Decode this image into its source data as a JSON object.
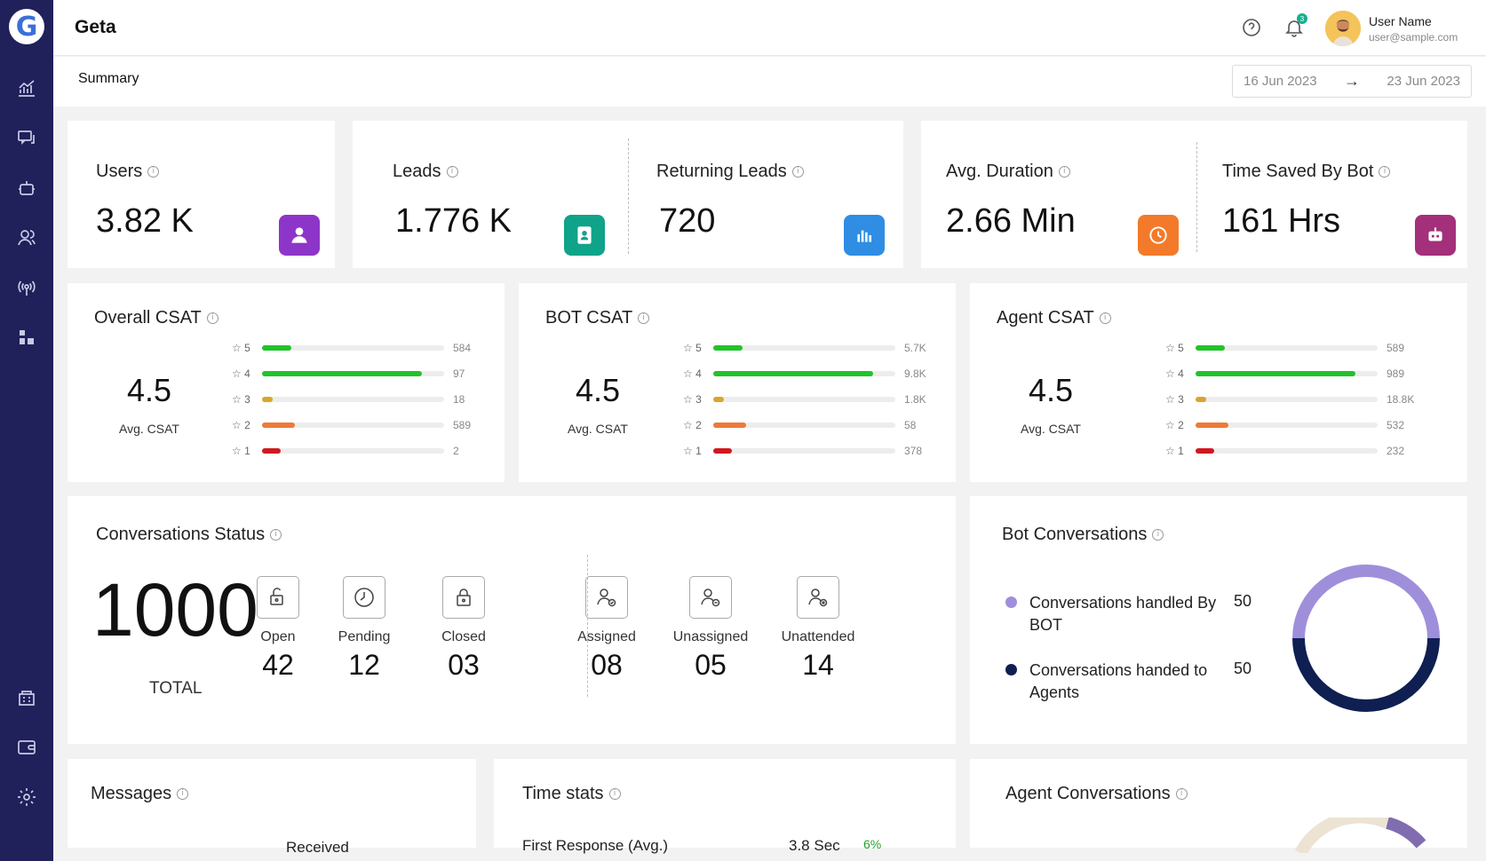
{
  "app": {
    "title": "Geta",
    "logo_letter": "G"
  },
  "sidebar": {
    "items": [
      {
        "name": "analytics-icon"
      },
      {
        "name": "chat-icon"
      },
      {
        "name": "bot-icon"
      },
      {
        "name": "users-icon"
      },
      {
        "name": "broadcast-icon"
      },
      {
        "name": "integrations-icon"
      },
      {
        "name": "store-icon"
      },
      {
        "name": "wallet-icon"
      },
      {
        "name": "settings-icon"
      }
    ]
  },
  "header": {
    "notification_count": "3",
    "user_name": "User Name",
    "user_email": "user@sample.com"
  },
  "summary": {
    "title": "Summary",
    "date_from": "16 Jun 2023",
    "date_to": "23 Jun 2023"
  },
  "stats": {
    "users": {
      "label": "Users",
      "value": "3.82 K",
      "color": "#8e35c9"
    },
    "leads": {
      "label": "Leads",
      "value": "1.776 K",
      "color": "#0fa38a"
    },
    "returning_leads": {
      "label": "Returning Leads",
      "value": "720",
      "color": "#2f8de4"
    },
    "avg_duration": {
      "label": "Avg. Duration",
      "value": "2.66 Min",
      "color": "#f37a2a"
    },
    "time_saved": {
      "label": "Time Saved By Bot",
      "value": "161 Hrs",
      "color": "#a42f7a"
    }
  },
  "csat": {
    "avg_label": "Avg. CSAT",
    "bar_colors": {
      "5": "#22c32a",
      "4": "#22c32a",
      "3": "#d9a62a",
      "2": "#ee7a3a",
      "1": "#d0181f"
    },
    "cards": [
      {
        "title": "Overall CSAT",
        "avg": "4.5",
        "rows": [
          {
            "star": "5",
            "count": "584",
            "fill": 0.16
          },
          {
            "star": "4",
            "count": "97",
            "fill": 0.88
          },
          {
            "star": "3",
            "count": "18",
            "fill": 0.06
          },
          {
            "star": "2",
            "count": "589",
            "fill": 0.18
          },
          {
            "star": "1",
            "count": "2",
            "fill": 0.1
          }
        ]
      },
      {
        "title": "BOT CSAT",
        "avg": "4.5",
        "rows": [
          {
            "star": "5",
            "count": "5.7K",
            "fill": 0.16
          },
          {
            "star": "4",
            "count": "9.8K",
            "fill": 0.88
          },
          {
            "star": "3",
            "count": "1.8K",
            "fill": 0.06
          },
          {
            "star": "2",
            "count": "58",
            "fill": 0.18
          },
          {
            "star": "1",
            "count": "378",
            "fill": 0.1
          }
        ]
      },
      {
        "title": "Agent CSAT",
        "avg": "4.5",
        "rows": [
          {
            "star": "5",
            "count": "589",
            "fill": 0.16
          },
          {
            "star": "4",
            "count": "989",
            "fill": 0.88
          },
          {
            "star": "3",
            "count": "18.8K",
            "fill": 0.06
          },
          {
            "star": "2",
            "count": "532",
            "fill": 0.18
          },
          {
            "star": "1",
            "count": "232",
            "fill": 0.1
          }
        ]
      }
    ]
  },
  "conversations_status": {
    "title": "Conversations Status",
    "total": "1000",
    "total_label": "TOTAL",
    "items": [
      {
        "label": "Open",
        "value": "42",
        "icon": "unlock-icon"
      },
      {
        "label": "Pending",
        "value": "12",
        "icon": "clock-icon"
      },
      {
        "label": "Closed",
        "value": "03",
        "icon": "lock-icon"
      },
      {
        "label": "Assigned",
        "value": "08",
        "icon": "user-check-icon"
      },
      {
        "label": "Unassigned",
        "value": "05",
        "icon": "user-minus-icon"
      },
      {
        "label": "Unattended",
        "value": "14",
        "icon": "user-x-icon"
      }
    ]
  },
  "bot_conversations": {
    "title": "Bot Conversations",
    "legend": [
      {
        "label": "Conversations handled By BOT",
        "value": "50",
        "color": "#9f8fdb"
      },
      {
        "label": "Conversations handed to Agents",
        "value": "50",
        "color": "#0f1f52"
      }
    ]
  },
  "messages": {
    "title": "Messages",
    "partial_text": "Received"
  },
  "time_stats": {
    "title": "Time stats",
    "first_response_label": "First Response (Avg.)",
    "first_response_value": "3.8 Sec",
    "first_response_change": "6%"
  },
  "agent_conversations": {
    "title": "Agent Conversations"
  }
}
